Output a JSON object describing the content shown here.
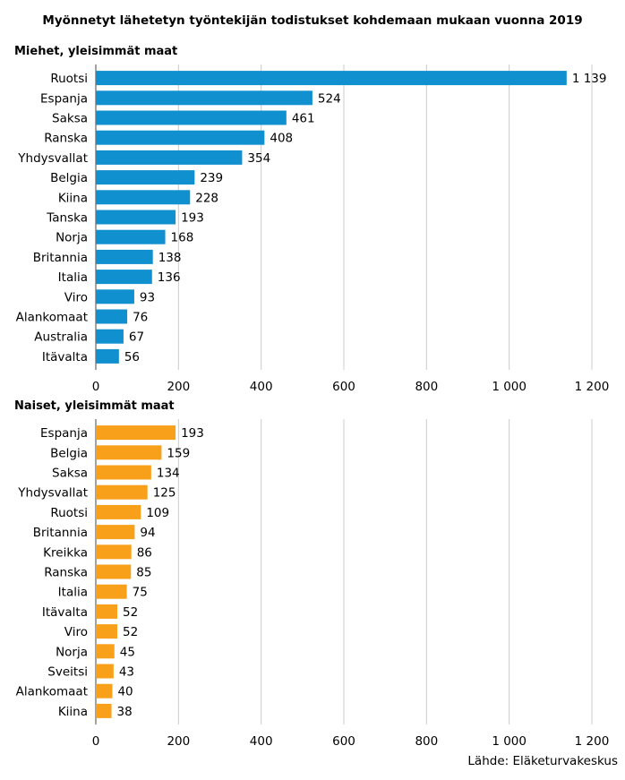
{
  "title": "Myönnetyt lähetetyn työntekijän todistukset kohdemaan mukaan vuonna 2019",
  "source": "Lähde: Eläketurvakeskus",
  "colors": {
    "men": "#1090cf",
    "women": "#f9a01b",
    "grid": "#cccccc"
  },
  "chart_data": [
    {
      "type": "bar",
      "orientation": "horizontal",
      "title": "Miehet, yleisimmät maat",
      "categories": [
        "Ruotsi",
        "Espanja",
        "Saksa",
        "Ranska",
        "Yhdysvallat",
        "Belgia",
        "Kiina",
        "Tanska",
        "Norja",
        "Britannia",
        "Italia",
        "Viro",
        "Alankomaat",
        "Australia",
        "Itävalta"
      ],
      "values": [
        1139,
        524,
        461,
        408,
        354,
        239,
        228,
        193,
        168,
        138,
        136,
        93,
        76,
        67,
        56
      ],
      "value_labels": [
        "1 139",
        "524",
        "461",
        "408",
        "354",
        "239",
        "228",
        "193",
        "168",
        "138",
        "136",
        "93",
        "76",
        "67",
        "56"
      ],
      "xlim": [
        0,
        1200
      ],
      "xticks": [
        0,
        200,
        400,
        600,
        800,
        1000,
        1200
      ],
      "xtick_labels": [
        "0",
        "200",
        "400",
        "600",
        "800",
        "1 000",
        "1 200"
      ],
      "grid": true,
      "color": "#1090cf"
    },
    {
      "type": "bar",
      "orientation": "horizontal",
      "title": "Naiset, yleisimmät maat",
      "categories": [
        "Espanja",
        "Belgia",
        "Saksa",
        "Yhdysvallat",
        "Ruotsi",
        "Britannia",
        "Kreikka",
        "Ranska",
        "Italia",
        "Itävalta",
        "Viro",
        "Norja",
        "Sveitsi",
        "Alankomaat",
        "Kiina"
      ],
      "values": [
        193,
        159,
        134,
        125,
        109,
        94,
        86,
        85,
        75,
        52,
        52,
        45,
        43,
        40,
        38
      ],
      "value_labels": [
        "193",
        "159",
        "134",
        "125",
        "109",
        "94",
        "86",
        "85",
        "75",
        "52",
        "52",
        "45",
        "43",
        "40",
        "38"
      ],
      "xlim": [
        0,
        1200
      ],
      "xticks": [
        0,
        200,
        400,
        600,
        800,
        1000,
        1200
      ],
      "xtick_labels": [
        "0",
        "200",
        "400",
        "600",
        "800",
        "1 000",
        "1 200"
      ],
      "grid": true,
      "color": "#f9a01b"
    }
  ]
}
